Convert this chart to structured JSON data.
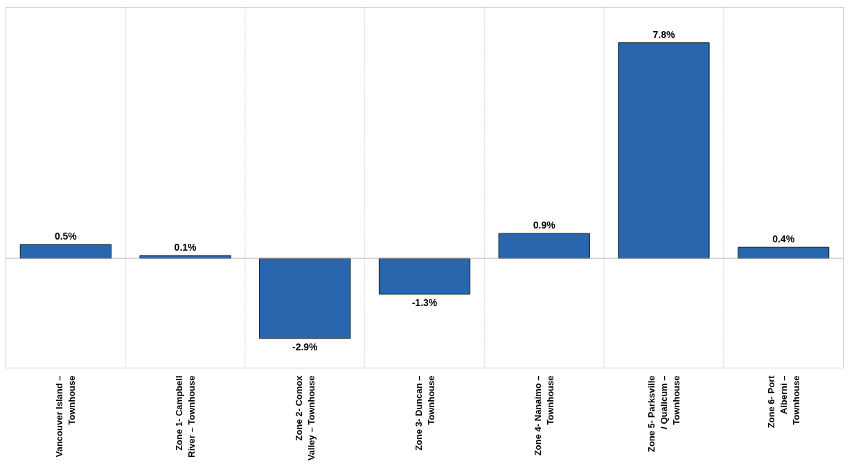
{
  "chart_data": {
    "type": "bar",
    "categories": [
      "Vancouver Island – Townhouse",
      "Zone 1- Campbell River – Townhouse",
      "Zone 2- Comox Valley – Townhouse",
      "Zone 3- Duncan – Townhouse",
      "Zone 4- Nanaimo – Townhouse",
      "Zone 5- Parksville / Qualicum – Townhouse",
      "Zone 6- Port Alberni – Townhouse"
    ],
    "values": [
      0.5,
      0.1,
      -2.9,
      -1.3,
      0.9,
      7.8,
      0.4
    ],
    "value_labels": [
      "0.5%",
      "0.1%",
      "-2.9%",
      "-1.3%",
      "0.9%",
      "7.8%",
      "0.4%"
    ],
    "color": "#2866ae",
    "grid": "x"
  }
}
